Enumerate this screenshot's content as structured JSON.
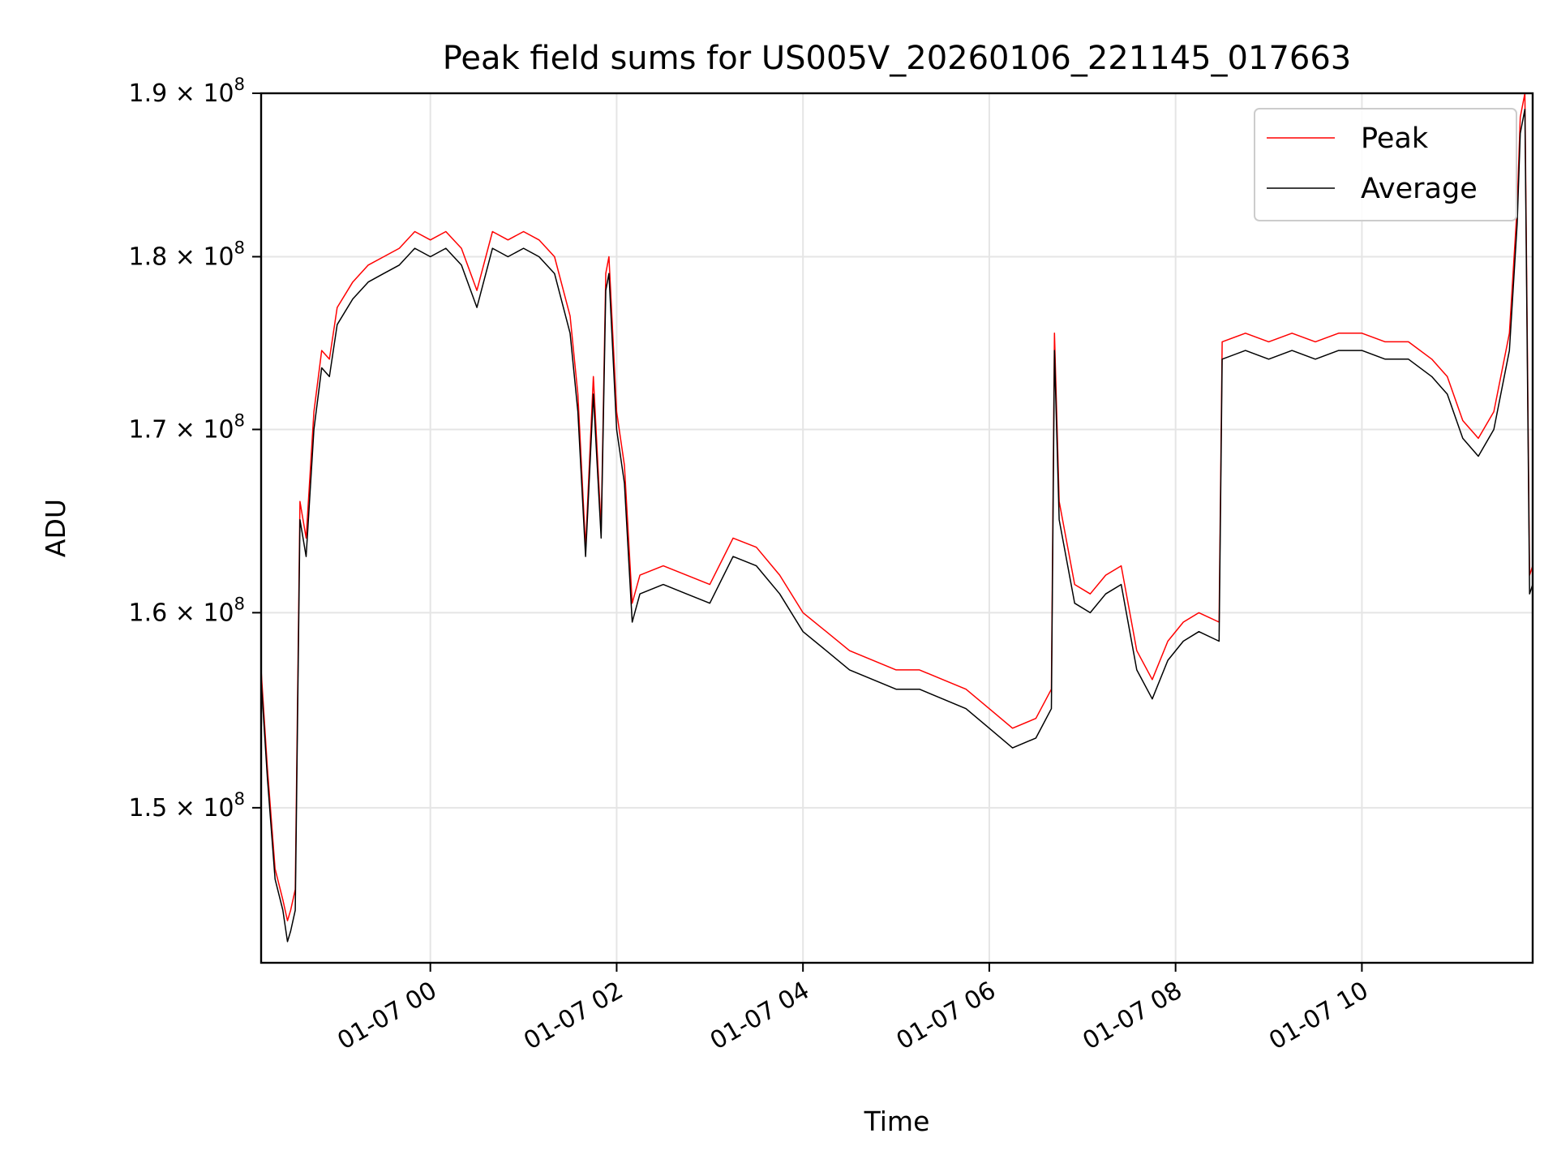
{
  "chart_data": {
    "type": "line",
    "title": "Peak field sums for US005V_20260106_221145_017663",
    "xlabel": "Time",
    "ylabel": "ADU",
    "y_scale": "log",
    "ylim": [
      142500000,
      190000000
    ],
    "xlim": [
      "2026-01-06 22:11",
      "2026-01-07 11:50"
    ],
    "grid": true,
    "legend_position": "top-right",
    "x_ticks": [
      {
        "t": "2026-01-07 00:00",
        "label": "01-07 00"
      },
      {
        "t": "2026-01-07 02:00",
        "label": "01-07 02"
      },
      {
        "t": "2026-01-07 04:00",
        "label": "01-07 04"
      },
      {
        "t": "2026-01-07 06:00",
        "label": "01-07 06"
      },
      {
        "t": "2026-01-07 08:00",
        "label": "01-07 08"
      },
      {
        "t": "2026-01-07 10:00",
        "label": "01-07 10"
      }
    ],
    "y_ticks": [
      {
        "value": 150000000,
        "base": "1.5",
        "exp": "8"
      },
      {
        "value": 160000000,
        "base": "1.6",
        "exp": "8"
      },
      {
        "value": 170000000,
        "base": "1.7",
        "exp": "8"
      },
      {
        "value": 180000000,
        "base": "1.8",
        "exp": "8"
      },
      {
        "value": 190000000,
        "base": "1.9",
        "exp": "8"
      }
    ],
    "times_symbol": "×",
    "tick_base": "10",
    "series": [
      {
        "name": "Peak",
        "color": "#ff0000",
        "x": [
          "2026-01-06 22:11",
          "2026-01-06 22:15",
          "2026-01-06 22:20",
          "2026-01-06 22:25",
          "2026-01-06 22:28",
          "2026-01-06 22:30",
          "2026-01-06 22:33",
          "2026-01-06 22:36",
          "2026-01-06 22:40",
          "2026-01-06 22:45",
          "2026-01-06 22:50",
          "2026-01-06 22:55",
          "2026-01-06 23:00",
          "2026-01-06 23:10",
          "2026-01-06 23:20",
          "2026-01-06 23:30",
          "2026-01-06 23:40",
          "2026-01-06 23:50",
          "2026-01-07 00:00",
          "2026-01-07 00:10",
          "2026-01-07 00:20",
          "2026-01-07 00:30",
          "2026-01-07 00:40",
          "2026-01-07 00:50",
          "2026-01-07 01:00",
          "2026-01-07 01:10",
          "2026-01-07 01:20",
          "2026-01-07 01:30",
          "2026-01-07 01:35",
          "2026-01-07 01:40",
          "2026-01-07 01:45",
          "2026-01-07 01:50",
          "2026-01-07 01:53",
          "2026-01-07 01:55",
          "2026-01-07 02:00",
          "2026-01-07 02:05",
          "2026-01-07 02:10",
          "2026-01-07 02:15",
          "2026-01-07 02:30",
          "2026-01-07 02:45",
          "2026-01-07 03:00",
          "2026-01-07 03:15",
          "2026-01-07 03:30",
          "2026-01-07 03:45",
          "2026-01-07 04:00",
          "2026-01-07 04:15",
          "2026-01-07 04:30",
          "2026-01-07 04:45",
          "2026-01-07 05:00",
          "2026-01-07 05:15",
          "2026-01-07 05:30",
          "2026-01-07 05:45",
          "2026-01-07 06:00",
          "2026-01-07 06:15",
          "2026-01-07 06:30",
          "2026-01-07 06:40",
          "2026-01-07 06:42",
          "2026-01-07 06:45",
          "2026-01-07 06:55",
          "2026-01-07 07:05",
          "2026-01-07 07:15",
          "2026-01-07 07:25",
          "2026-01-07 07:35",
          "2026-01-07 07:45",
          "2026-01-07 07:55",
          "2026-01-07 08:05",
          "2026-01-07 08:15",
          "2026-01-07 08:28",
          "2026-01-07 08:30",
          "2026-01-07 08:45",
          "2026-01-07 09:00",
          "2026-01-07 09:15",
          "2026-01-07 09:30",
          "2026-01-07 09:45",
          "2026-01-07 10:00",
          "2026-01-07 10:15",
          "2026-01-07 10:30",
          "2026-01-07 10:45",
          "2026-01-07 10:55",
          "2026-01-07 11:05",
          "2026-01-07 11:15",
          "2026-01-07 11:25",
          "2026-01-07 11:35",
          "2026-01-07 11:40",
          "2026-01-07 11:42",
          "2026-01-07 11:45",
          "2026-01-07 11:48",
          "2026-01-07 11:50"
        ],
        "values": [
          157000000,
          152000000,
          147000000,
          145500000,
          144500000,
          145000000,
          146000000,
          166000000,
          164000000,
          171000000,
          174500000,
          174000000,
          177000000,
          178500000,
          179500000,
          180000000,
          180500000,
          181500000,
          181000000,
          181500000,
          180500000,
          178000000,
          181500000,
          181000000,
          181500000,
          181000000,
          180000000,
          176500000,
          172000000,
          163500000,
          173000000,
          164500000,
          179000000,
          180000000,
          171000000,
          168000000,
          160500000,
          162000000,
          162500000,
          162000000,
          161500000,
          164000000,
          163500000,
          162000000,
          160000000,
          159000000,
          158000000,
          157500000,
          157000000,
          157000000,
          156500000,
          156000000,
          155000000,
          154000000,
          154500000,
          156000000,
          175500000,
          166000000,
          161500000,
          161000000,
          162000000,
          162500000,
          158000000,
          156500000,
          158500000,
          159500000,
          160000000,
          159500000,
          175000000,
          175500000,
          175000000,
          175500000,
          175000000,
          175500000,
          175500000,
          175000000,
          175000000,
          174000000,
          173000000,
          170500000,
          169500000,
          171000000,
          175500000,
          183000000,
          188500000,
          190000000,
          162000000,
          162500000
        ]
      },
      {
        "name": "Average",
        "color": "#000000",
        "x": [
          "2026-01-06 22:11",
          "2026-01-06 22:15",
          "2026-01-06 22:20",
          "2026-01-06 22:25",
          "2026-01-06 22:28",
          "2026-01-06 22:30",
          "2026-01-06 22:33",
          "2026-01-06 22:36",
          "2026-01-06 22:40",
          "2026-01-06 22:45",
          "2026-01-06 22:50",
          "2026-01-06 22:55",
          "2026-01-06 23:00",
          "2026-01-06 23:10",
          "2026-01-06 23:20",
          "2026-01-06 23:30",
          "2026-01-06 23:40",
          "2026-01-06 23:50",
          "2026-01-07 00:00",
          "2026-01-07 00:10",
          "2026-01-07 00:20",
          "2026-01-07 00:30",
          "2026-01-07 00:40",
          "2026-01-07 00:50",
          "2026-01-07 01:00",
          "2026-01-07 01:10",
          "2026-01-07 01:20",
          "2026-01-07 01:30",
          "2026-01-07 01:35",
          "2026-01-07 01:40",
          "2026-01-07 01:45",
          "2026-01-07 01:50",
          "2026-01-07 01:53",
          "2026-01-07 01:55",
          "2026-01-07 02:00",
          "2026-01-07 02:05",
          "2026-01-07 02:10",
          "2026-01-07 02:15",
          "2026-01-07 02:30",
          "2026-01-07 02:45",
          "2026-01-07 03:00",
          "2026-01-07 03:15",
          "2026-01-07 03:30",
          "2026-01-07 03:45",
          "2026-01-07 04:00",
          "2026-01-07 04:15",
          "2026-01-07 04:30",
          "2026-01-07 04:45",
          "2026-01-07 05:00",
          "2026-01-07 05:15",
          "2026-01-07 05:30",
          "2026-01-07 05:45",
          "2026-01-07 06:00",
          "2026-01-07 06:15",
          "2026-01-07 06:30",
          "2026-01-07 06:40",
          "2026-01-07 06:42",
          "2026-01-07 06:45",
          "2026-01-07 06:55",
          "2026-01-07 07:05",
          "2026-01-07 07:15",
          "2026-01-07 07:25",
          "2026-01-07 07:35",
          "2026-01-07 07:45",
          "2026-01-07 07:55",
          "2026-01-07 08:05",
          "2026-01-07 08:15",
          "2026-01-07 08:28",
          "2026-01-07 08:30",
          "2026-01-07 08:45",
          "2026-01-07 09:00",
          "2026-01-07 09:15",
          "2026-01-07 09:30",
          "2026-01-07 09:45",
          "2026-01-07 10:00",
          "2026-01-07 10:15",
          "2026-01-07 10:30",
          "2026-01-07 10:45",
          "2026-01-07 10:55",
          "2026-01-07 11:05",
          "2026-01-07 11:15",
          "2026-01-07 11:25",
          "2026-01-07 11:35",
          "2026-01-07 11:40",
          "2026-01-07 11:42",
          "2026-01-07 11:45",
          "2026-01-07 11:48",
          "2026-01-07 11:50"
        ],
        "values": [
          156500000,
          151500000,
          146500000,
          145000000,
          143500000,
          144000000,
          145000000,
          165000000,
          163000000,
          170000000,
          173500000,
          173000000,
          176000000,
          177500000,
          178500000,
          179000000,
          179500000,
          180500000,
          180000000,
          180500000,
          179500000,
          177000000,
          180500000,
          180000000,
          180500000,
          180000000,
          179000000,
          175500000,
          171000000,
          163000000,
          172000000,
          164000000,
          178000000,
          179000000,
          170000000,
          167000000,
          159500000,
          161000000,
          161500000,
          161000000,
          160500000,
          163000000,
          162500000,
          161000000,
          159000000,
          158000000,
          157000000,
          156500000,
          156000000,
          156000000,
          155500000,
          155000000,
          154000000,
          153000000,
          153500000,
          155000000,
          174500000,
          165000000,
          160500000,
          160000000,
          161000000,
          161500000,
          157000000,
          155500000,
          157500000,
          158500000,
          159000000,
          158500000,
          174000000,
          174500000,
          174000000,
          174500000,
          174000000,
          174500000,
          174500000,
          174000000,
          174000000,
          173000000,
          172000000,
          169500000,
          168500000,
          170000000,
          174500000,
          182000000,
          187500000,
          189000000,
          161000000,
          161500000
        ]
      }
    ]
  }
}
